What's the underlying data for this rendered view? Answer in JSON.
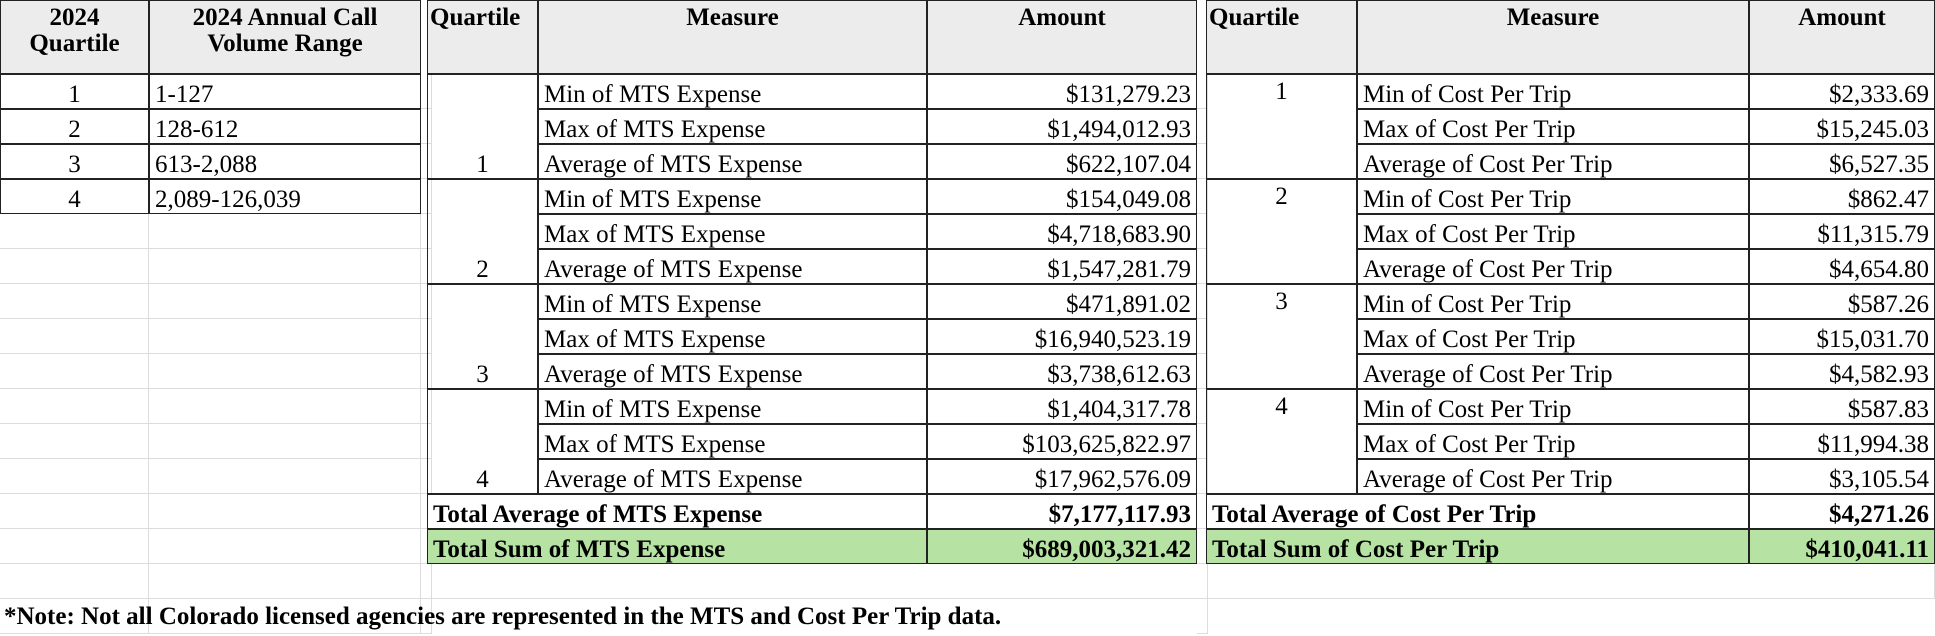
{
  "quartile_table": {
    "headers": [
      "2024 Quartile",
      "2024 Annual Call Volume Range"
    ],
    "rows": [
      [
        "1",
        "1-127"
      ],
      [
        "2",
        "128-612"
      ],
      [
        "3",
        "613-2,088"
      ],
      [
        "4",
        "2,089-126,039"
      ]
    ]
  },
  "mts_table": {
    "headers": [
      "Quartile",
      "Measure",
      "Amount"
    ],
    "groups": [
      {
        "quartile": "1",
        "rows": [
          [
            "Min of MTS Expense",
            "$131,279.23"
          ],
          [
            "Max of MTS Expense",
            "$1,494,012.93"
          ],
          [
            "Average of MTS Expense",
            "$622,107.04"
          ]
        ]
      },
      {
        "quartile": "2",
        "rows": [
          [
            "Min of MTS Expense",
            "$154,049.08"
          ],
          [
            "Max of MTS Expense",
            "$4,718,683.90"
          ],
          [
            "Average of MTS Expense",
            "$1,547,281.79"
          ]
        ]
      },
      {
        "quartile": "3",
        "rows": [
          [
            "Min of MTS Expense",
            "$471,891.02"
          ],
          [
            "Max of MTS Expense",
            "$16,940,523.19"
          ],
          [
            "Average of MTS Expense",
            "$3,738,612.63"
          ]
        ]
      },
      {
        "quartile": "4",
        "rows": [
          [
            "Min of MTS Expense",
            "$1,404,317.78"
          ],
          [
            "Max of MTS Expense",
            "$103,625,822.97"
          ],
          [
            "Average of MTS Expense",
            "$17,962,576.09"
          ]
        ]
      }
    ],
    "total_average": [
      "Total Average of MTS Expense",
      "$7,177,117.93"
    ],
    "total_sum": [
      "Total Sum of MTS Expense",
      "$689,003,321.42"
    ]
  },
  "cost_table": {
    "headers": [
      "Quartile",
      "Measure",
      "Amount"
    ],
    "groups": [
      {
        "quartile": "1",
        "rows": [
          [
            "Min of Cost Per Trip",
            "$2,333.69"
          ],
          [
            "Max of Cost Per Trip",
            "$15,245.03"
          ],
          [
            "Average of Cost Per Trip",
            "$6,527.35"
          ]
        ]
      },
      {
        "quartile": "2",
        "rows": [
          [
            "Min of Cost Per Trip",
            "$862.47"
          ],
          [
            "Max of Cost Per Trip",
            "$11,315.79"
          ],
          [
            "Average of Cost Per Trip",
            "$4,654.80"
          ]
        ]
      },
      {
        "quartile": "3",
        "rows": [
          [
            "Min of Cost Per Trip",
            "$587.26"
          ],
          [
            "Max of Cost Per Trip",
            "$15,031.70"
          ],
          [
            "Average of Cost Per Trip",
            "$4,582.93"
          ]
        ]
      },
      {
        "quartile": "4",
        "rows": [
          [
            "Min of Cost Per Trip",
            "$587.83"
          ],
          [
            "Max of Cost Per Trip",
            "$11,994.38"
          ],
          [
            "Average of Cost Per Trip",
            "$3,105.54"
          ]
        ]
      }
    ],
    "total_average": [
      "Total Average of Cost Per Trip",
      "$4,271.26"
    ],
    "total_sum": [
      "Total Sum of Cost Per Trip",
      "$410,041.11"
    ]
  },
  "note": "*Note: Not all Colorado licensed agencies are represented in the MTS and Cost Per Trip data."
}
